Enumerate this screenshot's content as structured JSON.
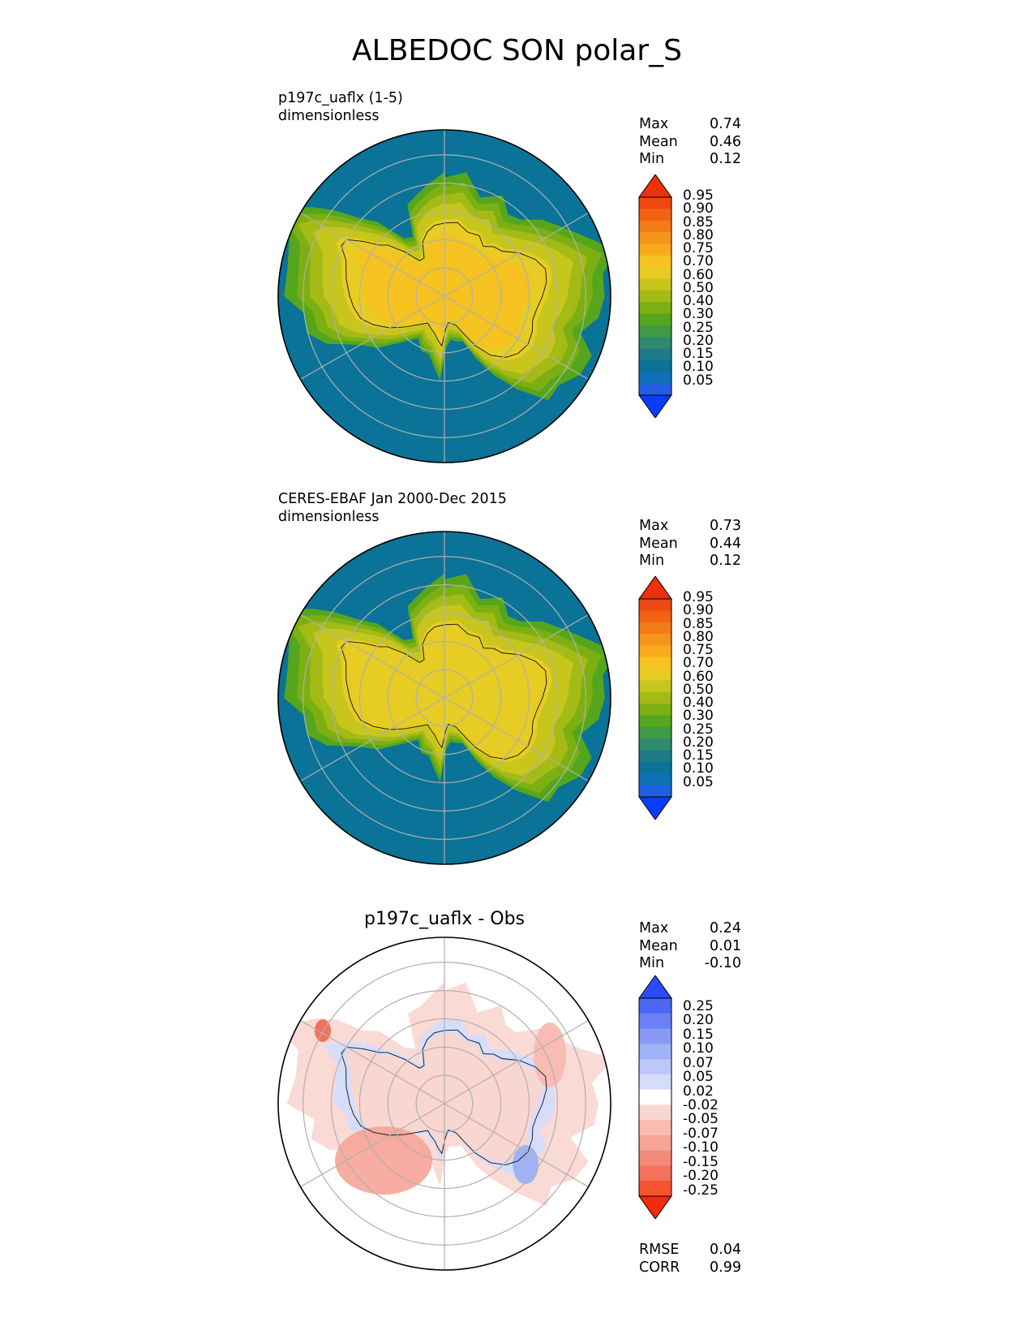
{
  "figure_title": "ALBEDOC SON polar_S",
  "panels": [
    {
      "title_line1": "p197c_uaflx (1-5)",
      "title_line2": "dimensionless",
      "stats": [
        {
          "label": "Max",
          "value": "0.74"
        },
        {
          "label": "Mean",
          "value": "0.46"
        },
        {
          "label": "Min",
          "value": "0.12"
        }
      ]
    },
    {
      "title_line1": "CERES-EBAF Jan 2000-Dec 2015",
      "title_line2": "dimensionless",
      "stats": [
        {
          "label": "Max",
          "value": "0.73"
        },
        {
          "label": "Mean",
          "value": "0.44"
        },
        {
          "label": "Min",
          "value": "0.12"
        }
      ]
    },
    {
      "title": "p197c_uaflx - Obs",
      "stats": [
        {
          "label": "Max",
          "value": "0.24"
        },
        {
          "label": "Mean",
          "value": "0.01"
        },
        {
          "label": "Min",
          "value": "-0.10"
        }
      ],
      "metrics": [
        {
          "label": "RMSE",
          "value": "0.04"
        },
        {
          "label": "CORR",
          "value": "0.99"
        }
      ]
    }
  ],
  "chart_data": [
    {
      "type": "heatmap",
      "projection": "south polar stereographic",
      "field": "model",
      "colorbar_ticks": [
        "0.05",
        "0.10",
        "0.15",
        "0.20",
        "0.25",
        "0.30",
        "0.40",
        "0.50",
        "0.60",
        "0.70",
        "0.75",
        "0.80",
        "0.85",
        "0.90",
        "0.95"
      ],
      "colorbar_colors": [
        "#0a3dfb",
        "#1f5fe0",
        "#0f6fb7",
        "#0a7397",
        "#1d7a86",
        "#2f8a6e",
        "#3f9a45",
        "#55a61c",
        "#7cb012",
        "#a4ba16",
        "#c7c61c",
        "#e6cc23",
        "#f6c21f",
        "#f8ac1c",
        "#f6951c",
        "#f37b15",
        "#f26213",
        "#ef4810",
        "#ee300b"
      ],
      "colorbar_extend": "both",
      "regions": {
        "land_ice": 0.72,
        "sea_ice_inner": 0.62,
        "sea_ice_outer": 0.45,
        "open_ocean": 0.12
      },
      "stats": {
        "max": 0.74,
        "mean": 0.46,
        "min": 0.12
      }
    },
    {
      "type": "heatmap",
      "projection": "south polar stereographic",
      "field": "observations",
      "colorbar_ticks": [
        "0.05",
        "0.10",
        "0.15",
        "0.20",
        "0.25",
        "0.30",
        "0.40",
        "0.50",
        "0.60",
        "0.70",
        "0.75",
        "0.80",
        "0.85",
        "0.90",
        "0.95"
      ],
      "colorbar_colors": [
        "#0a3dfb",
        "#1f5fe0",
        "#0f6fb7",
        "#0a7397",
        "#1d7a86",
        "#2f8a6e",
        "#3f9a45",
        "#55a61c",
        "#7cb012",
        "#a4ba16",
        "#c7c61c",
        "#e6cc23",
        "#f6c21f",
        "#f8ac1c",
        "#f6951c",
        "#f37b15",
        "#f26213",
        "#ef4810",
        "#ee300b"
      ],
      "colorbar_extend": "both",
      "regions": {
        "land_ice": 0.68,
        "sea_ice_inner": 0.6,
        "sea_ice_outer": 0.42,
        "open_ocean": 0.12
      },
      "stats": {
        "max": 0.73,
        "mean": 0.44,
        "min": 0.12
      }
    },
    {
      "type": "heatmap",
      "projection": "south polar stereographic",
      "field": "difference",
      "colorbar_ticks": [
        "0.25",
        "0.20",
        "0.15",
        "0.10",
        "0.07",
        "0.05",
        "0.02",
        "-0.02",
        "-0.05",
        "-0.07",
        "-0.10",
        "-0.15",
        "-0.20",
        "-0.25"
      ],
      "colorbar_colors": [
        "#f5290c",
        "#f45331",
        "#f4715a",
        "#f48a7b",
        "#f6a497",
        "#f8bcb3",
        "#fad6d0",
        "#ffffff",
        "#d6ddfa",
        "#bcc8f8",
        "#a0b2f6",
        "#8799f4",
        "#6b80f4",
        "#4d66f4",
        "#2b4bf6"
      ],
      "colorbar_extend": "both",
      "regions": {
        "coast_band_negative": -0.04,
        "sea_ice_positive": 0.05,
        "weddell_positive": 0.1,
        "ocean_near_zero": 0.0
      },
      "stats": {
        "max": 0.24,
        "mean": 0.01,
        "min": -0.1,
        "rmse": 0.04,
        "corr": 0.99
      }
    }
  ]
}
